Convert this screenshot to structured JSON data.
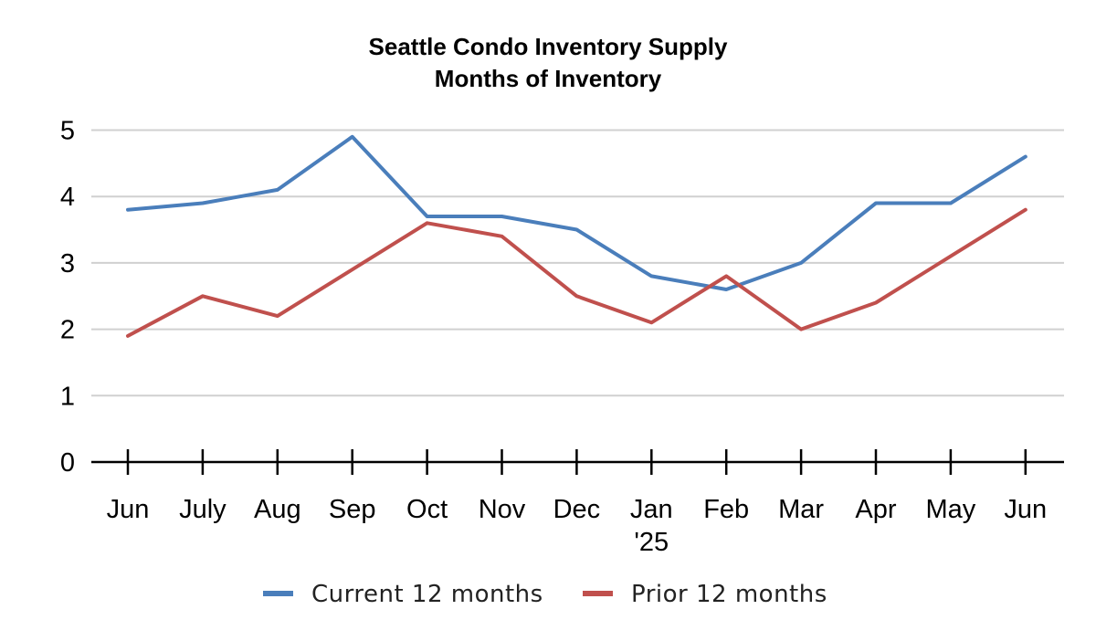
{
  "chart_data": {
    "type": "line",
    "title": "Seattle Condo Inventory Supply",
    "subtitle": "Months of Inventory",
    "categories": [
      [
        "Jun"
      ],
      [
        "July"
      ],
      [
        "Aug"
      ],
      [
        "Sep"
      ],
      [
        "Oct"
      ],
      [
        "Nov"
      ],
      [
        "Dec"
      ],
      [
        "Jan",
        "'25"
      ],
      [
        "Feb"
      ],
      [
        "Mar"
      ],
      [
        "Apr"
      ],
      [
        "May"
      ],
      [
        "Jun"
      ]
    ],
    "ylim": [
      0,
      5
    ],
    "yticks": [
      0,
      1,
      2,
      3,
      4,
      5
    ],
    "grid": true,
    "legend_position": "bottom",
    "series": [
      {
        "name": "Current 12 months",
        "color": "#4a7ebb",
        "values": [
          3.8,
          3.9,
          4.1,
          4.9,
          3.7,
          3.7,
          3.5,
          2.8,
          2.6,
          3.0,
          3.9,
          3.9,
          4.6
        ]
      },
      {
        "name": "Prior 12 months",
        "color": "#c0504d",
        "values": [
          1.9,
          2.5,
          2.2,
          2.9,
          3.6,
          3.4,
          2.5,
          2.1,
          2.8,
          2.0,
          2.4,
          3.1,
          3.8
        ]
      }
    ]
  }
}
